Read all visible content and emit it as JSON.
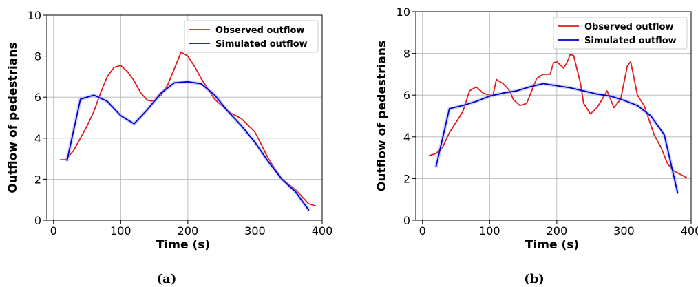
{
  "chart_data": [
    {
      "type": "line",
      "xlabel": "Time (s)",
      "ylabel": "Outflow of pedestrians",
      "xlim": [
        -10,
        400
      ],
      "ylim": [
        0,
        10
      ],
      "xticks": [
        0,
        100,
        200,
        300,
        400
      ],
      "yticks": [
        0,
        2,
        4,
        6,
        8,
        10
      ],
      "grid": true,
      "legend_position": "top-right",
      "caption": "(a)",
      "series": [
        {
          "name": "Observed outflow",
          "color": "#e41a1c",
          "points": [
            [
              10,
              2.95
            ],
            [
              18,
              2.95
            ],
            [
              30,
              3.4
            ],
            [
              40,
              4.0
            ],
            [
              50,
              4.6
            ],
            [
              60,
              5.3
            ],
            [
              70,
              6.2
            ],
            [
              80,
              7.0
            ],
            [
              90,
              7.45
            ],
            [
              100,
              7.55
            ],
            [
              110,
              7.25
            ],
            [
              120,
              6.8
            ],
            [
              130,
              6.2
            ],
            [
              140,
              5.85
            ],
            [
              150,
              5.8
            ],
            [
              160,
              6.1
            ],
            [
              170,
              6.6
            ],
            [
              180,
              7.4
            ],
            [
              190,
              8.2
            ],
            [
              200,
              8.0
            ],
            [
              210,
              7.5
            ],
            [
              220,
              6.9
            ],
            [
              230,
              6.4
            ],
            [
              240,
              5.9
            ],
            [
              260,
              5.3
            ],
            [
              280,
              4.95
            ],
            [
              300,
              4.3
            ],
            [
              320,
              3.0
            ],
            [
              340,
              2.0
            ],
            [
              360,
              1.5
            ],
            [
              380,
              0.8
            ],
            [
              390,
              0.7
            ]
          ]
        },
        {
          "name": "Simulated outflow",
          "color": "#0000cc",
          "points": [
            [
              20,
              2.9
            ],
            [
              40,
              5.9
            ],
            [
              60,
              6.1
            ],
            [
              80,
              5.8
            ],
            [
              100,
              5.1
            ],
            [
              120,
              4.7
            ],
            [
              140,
              5.4
            ],
            [
              160,
              6.2
            ],
            [
              180,
              6.7
            ],
            [
              200,
              6.75
            ],
            [
              220,
              6.65
            ],
            [
              240,
              6.1
            ],
            [
              260,
              5.3
            ],
            [
              280,
              4.6
            ],
            [
              300,
              3.8
            ],
            [
              320,
              2.85
            ],
            [
              340,
              2.0
            ],
            [
              360,
              1.4
            ],
            [
              380,
              0.5
            ]
          ]
        }
      ]
    },
    {
      "type": "line",
      "xlabel": "Time (s)",
      "ylabel": "Outflow of pedestrians",
      "xlim": [
        -10,
        400
      ],
      "ylim": [
        0,
        10
      ],
      "xticks": [
        0,
        100,
        200,
        300,
        400
      ],
      "yticks": [
        0,
        2,
        4,
        6,
        8,
        10
      ],
      "grid": true,
      "legend_position": "top-right",
      "caption": "(b)",
      "series": [
        {
          "name": "Observed outflow",
          "color": "#e41a1c",
          "points": [
            [
              10,
              3.1
            ],
            [
              20,
              3.2
            ],
            [
              30,
              3.5
            ],
            [
              40,
              4.2
            ],
            [
              50,
              4.7
            ],
            [
              60,
              5.2
            ],
            [
              70,
              6.2
            ],
            [
              80,
              6.4
            ],
            [
              90,
              6.1
            ],
            [
              100,
              6.0
            ],
            [
              105,
              6.0
            ],
            [
              110,
              6.75
            ],
            [
              120,
              6.55
            ],
            [
              130,
              6.2
            ],
            [
              135,
              5.8
            ],
            [
              145,
              5.5
            ],
            [
              155,
              5.6
            ],
            [
              160,
              6.0
            ],
            [
              170,
              6.8
            ],
            [
              180,
              7.0
            ],
            [
              190,
              7.0
            ],
            [
              195,
              7.55
            ],
            [
              200,
              7.6
            ],
            [
              210,
              7.3
            ],
            [
              215,
              7.55
            ],
            [
              220,
              7.95
            ],
            [
              225,
              7.9
            ],
            [
              235,
              6.6
            ],
            [
              240,
              5.6
            ],
            [
              250,
              5.1
            ],
            [
              260,
              5.4
            ],
            [
              275,
              6.2
            ],
            [
              285,
              5.4
            ],
            [
              295,
              5.8
            ],
            [
              305,
              7.4
            ],
            [
              310,
              7.6
            ],
            [
              320,
              6.0
            ],
            [
              330,
              5.5
            ],
            [
              345,
              4.1
            ],
            [
              355,
              3.5
            ],
            [
              365,
              2.7
            ],
            [
              375,
              2.35
            ],
            [
              393,
              2.05
            ]
          ]
        },
        {
          "name": "Simulated outflow",
          "color": "#0000cc",
          "points": [
            [
              20,
              2.55
            ],
            [
              40,
              5.35
            ],
            [
              60,
              5.5
            ],
            [
              80,
              5.7
            ],
            [
              100,
              5.95
            ],
            [
              120,
              6.1
            ],
            [
              140,
              6.2
            ],
            [
              160,
              6.4
            ],
            [
              180,
              6.55
            ],
            [
              200,
              6.45
            ],
            [
              220,
              6.35
            ],
            [
              240,
              6.2
            ],
            [
              260,
              6.05
            ],
            [
              280,
              5.95
            ],
            [
              300,
              5.75
            ],
            [
              320,
              5.5
            ],
            [
              340,
              5.0
            ],
            [
              360,
              4.1
            ],
            [
              380,
              1.3
            ]
          ]
        }
      ]
    }
  ]
}
